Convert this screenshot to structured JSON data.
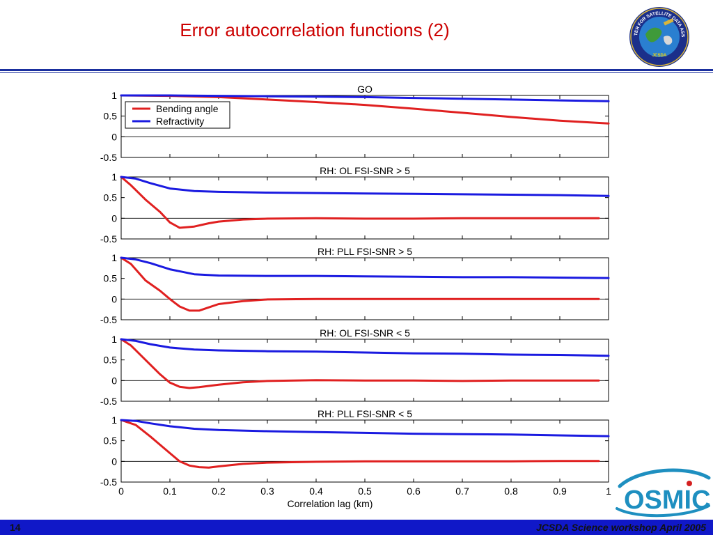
{
  "slide": {
    "title": "Error autocorrelation functions (2)",
    "page_number": "14",
    "footer_text": "JCSDA Science workshop April 2005"
  },
  "logos": {
    "seal": "jcsda-seal",
    "seal_text": "JOINT CENTER FOR SATELLITE DATA ASSIMILATION",
    "seal_inner_text": "JCSDA",
    "osmic": "OSMIC"
  },
  "colors": {
    "title": "#cc0000",
    "rule": "#1a2f9e",
    "footer_bar": "#1018c8",
    "bending_angle": "#e02020",
    "refractivity": "#1a1ae0"
  },
  "chart_data": [
    {
      "type": "line",
      "title": "GO",
      "ylim": [
        -0.5,
        1
      ],
      "yticks": [
        "1",
        "0.5",
        "0",
        "-0.5"
      ],
      "legend": {
        "placement": "top-left",
        "entries": [
          "Bending angle",
          "Refractivity"
        ]
      },
      "series": [
        {
          "name": "Bending angle",
          "color": "#e02020",
          "x": [
            0,
            0.1,
            0.2,
            0.3,
            0.4,
            0.5,
            0.6,
            0.7,
            0.8,
            0.9,
            1.0
          ],
          "y": [
            1.0,
            0.99,
            0.96,
            0.9,
            0.84,
            0.77,
            0.68,
            0.58,
            0.48,
            0.39,
            0.32
          ]
        },
        {
          "name": "Refractivity",
          "color": "#1a1ae0",
          "x": [
            0,
            0.1,
            0.2,
            0.3,
            0.4,
            0.5,
            0.6,
            0.7,
            0.8,
            0.9,
            1.0
          ],
          "y": [
            1.0,
            1.0,
            0.99,
            0.98,
            0.97,
            0.96,
            0.94,
            0.92,
            0.9,
            0.88,
            0.86
          ]
        }
      ]
    },
    {
      "type": "line",
      "title": "RH: OL FSI-SNR > 5",
      "ylim": [
        -0.5,
        1
      ],
      "yticks": [
        "1",
        "0.5",
        "0",
        "-0.5"
      ],
      "series": [
        {
          "name": "Bending angle",
          "color": "#e02020",
          "x": [
            0,
            0.02,
            0.05,
            0.08,
            0.1,
            0.12,
            0.15,
            0.18,
            0.2,
            0.25,
            0.3,
            0.4,
            0.5,
            0.6,
            0.7,
            0.8,
            0.9,
            0.98
          ],
          "y": [
            1.0,
            0.8,
            0.45,
            0.15,
            -0.1,
            -0.23,
            -0.2,
            -0.12,
            -0.08,
            -0.03,
            -0.01,
            0.0,
            -0.01,
            -0.01,
            0.0,
            0.0,
            0.0,
            0.0
          ]
        },
        {
          "name": "Refractivity",
          "color": "#1a1ae0",
          "x": [
            0,
            0.03,
            0.06,
            0.1,
            0.15,
            0.2,
            0.3,
            0.4,
            0.5,
            0.6,
            0.7,
            0.8,
            0.9,
            1.0
          ],
          "y": [
            1.0,
            0.96,
            0.85,
            0.72,
            0.66,
            0.64,
            0.62,
            0.61,
            0.6,
            0.59,
            0.58,
            0.57,
            0.56,
            0.54
          ]
        }
      ]
    },
    {
      "type": "line",
      "title": "RH: PLL FSI-SNR > 5",
      "ylim": [
        -0.5,
        1
      ],
      "yticks": [
        "1",
        "0.5",
        "0",
        "-0.5"
      ],
      "series": [
        {
          "name": "Bending angle",
          "color": "#e02020",
          "x": [
            0,
            0.02,
            0.05,
            0.08,
            0.1,
            0.12,
            0.14,
            0.16,
            0.18,
            0.2,
            0.25,
            0.3,
            0.4,
            0.5,
            0.6,
            0.7,
            0.8,
            0.9,
            0.98
          ],
          "y": [
            1.0,
            0.85,
            0.45,
            0.2,
            0.0,
            -0.18,
            -0.28,
            -0.28,
            -0.2,
            -0.12,
            -0.05,
            -0.01,
            0.0,
            0.0,
            0.0,
            0.0,
            0.0,
            0.0,
            0.0
          ]
        },
        {
          "name": "Refractivity",
          "color": "#1a1ae0",
          "x": [
            0,
            0.03,
            0.06,
            0.1,
            0.15,
            0.2,
            0.3,
            0.4,
            0.5,
            0.6,
            0.7,
            0.8,
            0.9,
            1.0
          ],
          "y": [
            1.0,
            0.96,
            0.87,
            0.72,
            0.6,
            0.57,
            0.56,
            0.56,
            0.55,
            0.54,
            0.53,
            0.53,
            0.52,
            0.51
          ]
        }
      ]
    },
    {
      "type": "line",
      "title": "RH: OL FSI-SNR < 5",
      "ylim": [
        -0.5,
        1
      ],
      "yticks": [
        "1",
        "0.5",
        "0",
        "-0.5"
      ],
      "series": [
        {
          "name": "Bending angle",
          "color": "#e02020",
          "x": [
            0,
            0.02,
            0.05,
            0.08,
            0.1,
            0.12,
            0.14,
            0.16,
            0.2,
            0.25,
            0.3,
            0.4,
            0.5,
            0.6,
            0.7,
            0.8,
            0.9,
            0.98
          ],
          "y": [
            1.0,
            0.85,
            0.5,
            0.15,
            -0.05,
            -0.15,
            -0.18,
            -0.16,
            -0.1,
            -0.04,
            -0.01,
            0.01,
            0.0,
            0.0,
            -0.01,
            0.0,
            0.0,
            0.0
          ]
        },
        {
          "name": "Refractivity",
          "color": "#1a1ae0",
          "x": [
            0,
            0.03,
            0.06,
            0.1,
            0.15,
            0.2,
            0.3,
            0.4,
            0.5,
            0.6,
            0.7,
            0.8,
            0.9,
            1.0
          ],
          "y": [
            1.0,
            0.96,
            0.88,
            0.8,
            0.75,
            0.73,
            0.71,
            0.7,
            0.68,
            0.66,
            0.65,
            0.63,
            0.62,
            0.6
          ]
        }
      ]
    },
    {
      "type": "line",
      "title": "RH: PLL FSI-SNR < 5",
      "xlabel": "Correlation lag (km)",
      "xticks": [
        "0",
        "0.1",
        "0.2",
        "0.3",
        "0.4",
        "0.5",
        "0.6",
        "0.7",
        "0.8",
        "0.9",
        "1"
      ],
      "ylim": [
        -0.5,
        1
      ],
      "yticks": [
        "1",
        "0.5",
        "0",
        "-0.5"
      ],
      "series": [
        {
          "name": "Bending angle",
          "color": "#e02020",
          "x": [
            0,
            0.03,
            0.06,
            0.1,
            0.12,
            0.14,
            0.16,
            0.18,
            0.2,
            0.25,
            0.3,
            0.4,
            0.5,
            0.6,
            0.7,
            0.8,
            0.9,
            0.98
          ],
          "y": [
            1.0,
            0.88,
            0.6,
            0.2,
            0.0,
            -0.1,
            -0.14,
            -0.15,
            -0.12,
            -0.06,
            -0.03,
            -0.01,
            0.0,
            0.0,
            0.0,
            0.0,
            0.01,
            0.01
          ]
        },
        {
          "name": "Refractivity",
          "color": "#1a1ae0",
          "x": [
            0,
            0.03,
            0.06,
            0.1,
            0.15,
            0.2,
            0.3,
            0.4,
            0.5,
            0.6,
            0.7,
            0.8,
            0.9,
            1.0
          ],
          "y": [
            1.0,
            0.98,
            0.92,
            0.85,
            0.79,
            0.76,
            0.73,
            0.71,
            0.69,
            0.67,
            0.66,
            0.65,
            0.63,
            0.61
          ]
        }
      ]
    }
  ]
}
